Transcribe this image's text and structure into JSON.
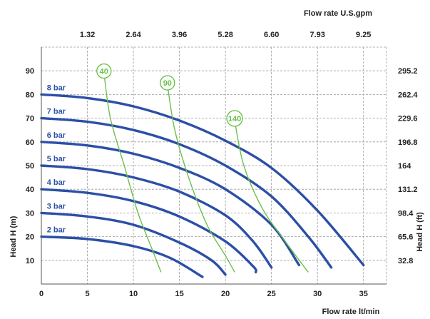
{
  "chart_data": {
    "type": "line",
    "xlabel_bottom": "Flow rate  lt/min",
    "xlabel_top": "Flow rate U.S.gpm",
    "ylabel_left": "Head H (m)",
    "ylabel_right": "Head H (ft)",
    "xlim": [
      0,
      37.5
    ],
    "ylim": [
      0,
      100
    ],
    "x_ticks_bottom": [
      "0",
      "5",
      "10",
      "15",
      "20",
      "25",
      "30",
      "35"
    ],
    "x_ticks_top": [
      "1.32",
      "2.64",
      "3.96",
      "5.28",
      "6.60",
      "7.93",
      "9.25"
    ],
    "y_ticks_left": [
      "10",
      "20",
      "30",
      "40",
      "50",
      "60",
      "70",
      "80",
      "90"
    ],
    "y_ticks_right": [
      "32.8",
      "65.6",
      "98.4",
      "131.2",
      "164",
      "196.8",
      "229.6",
      "262.4",
      "295.2"
    ],
    "grid": true,
    "colors": {
      "pressure": "#2c4fa6",
      "air": "#6cc04a",
      "grid": "#9a9a9a"
    },
    "series": [
      {
        "name": "2 bar",
        "points": [
          [
            0,
            20
          ],
          [
            5,
            19
          ],
          [
            10,
            16
          ],
          [
            14,
            11
          ],
          [
            17.5,
            3
          ]
        ]
      },
      {
        "name": "3 bar",
        "points": [
          [
            0,
            30
          ],
          [
            5,
            28.5
          ],
          [
            10,
            25
          ],
          [
            15,
            17.5
          ],
          [
            18.5,
            10
          ],
          [
            20,
            4
          ]
        ]
      },
      {
        "name": "4 bar",
        "points": [
          [
            0,
            40
          ],
          [
            5,
            38.5
          ],
          [
            10,
            35
          ],
          [
            15,
            28.5
          ],
          [
            20,
            18
          ],
          [
            23,
            7.5
          ],
          [
            23.3,
            5
          ]
        ]
      },
      {
        "name": "5 bar",
        "points": [
          [
            0,
            50
          ],
          [
            5,
            48.5
          ],
          [
            10,
            45
          ],
          [
            15,
            39
          ],
          [
            20,
            29
          ],
          [
            23,
            18
          ],
          [
            25,
            7
          ]
        ]
      },
      {
        "name": "6 bar",
        "points": [
          [
            0,
            60
          ],
          [
            5,
            58.5
          ],
          [
            10,
            55
          ],
          [
            15,
            49
          ],
          [
            20,
            40
          ],
          [
            25,
            25
          ],
          [
            28,
            8
          ]
        ]
      },
      {
        "name": "7 bar",
        "points": [
          [
            0,
            70
          ],
          [
            5,
            68.5
          ],
          [
            10,
            65
          ],
          [
            15,
            59
          ],
          [
            20,
            50
          ],
          [
            25,
            37
          ],
          [
            29,
            20
          ],
          [
            31.5,
            7
          ]
        ]
      },
      {
        "name": "8 bar",
        "points": [
          [
            0,
            80
          ],
          [
            5,
            78.5
          ],
          [
            10,
            75
          ],
          [
            15,
            69
          ],
          [
            20,
            60.5
          ],
          [
            25,
            49
          ],
          [
            30,
            31
          ],
          [
            35,
            8
          ]
        ]
      }
    ],
    "air_lines": [
      {
        "name": "40",
        "points": [
          [
            6.8,
            89
          ],
          [
            7.5,
            70
          ],
          [
            9,
            50
          ],
          [
            10.5,
            30
          ],
          [
            12,
            15
          ],
          [
            13,
            5
          ]
        ]
      },
      {
        "name": "90",
        "points": [
          [
            13.7,
            84
          ],
          [
            14.5,
            65
          ],
          [
            16,
            45
          ],
          [
            18,
            25
          ],
          [
            20,
            12
          ],
          [
            21,
            5
          ]
        ]
      },
      {
        "name": "140",
        "points": [
          [
            21,
            69
          ],
          [
            22,
            50
          ],
          [
            24,
            32
          ],
          [
            26.5,
            18
          ],
          [
            29,
            5
          ]
        ]
      }
    ]
  }
}
